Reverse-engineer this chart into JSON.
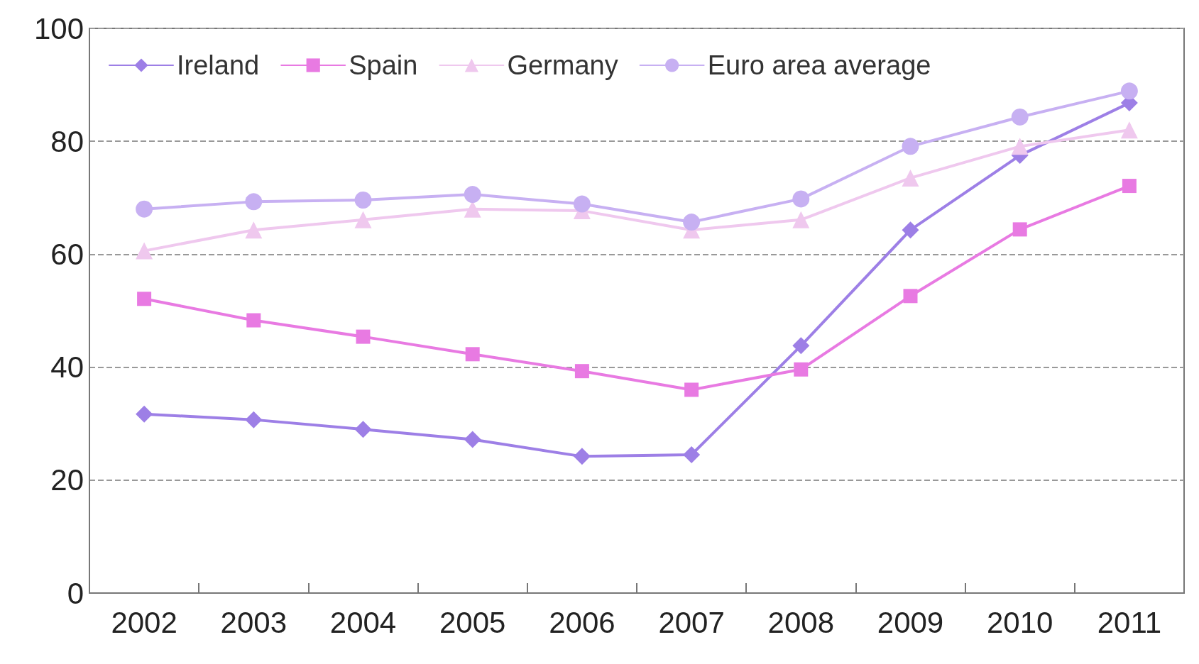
{
  "chart_data": {
    "type": "line",
    "categories": [
      "2002",
      "2003",
      "2004",
      "2005",
      "2006",
      "2007",
      "2008",
      "2009",
      "2010",
      "2011"
    ],
    "series": [
      {
        "name": "Ireland",
        "color": "#9d7fe6",
        "marker": "diamond",
        "values": [
          31.7,
          30.7,
          29.0,
          27.2,
          24.2,
          24.5,
          43.8,
          64.3,
          77.5,
          86.8
        ]
      },
      {
        "name": "Spain",
        "color": "#e87ae2",
        "marker": "square",
        "values": [
          52.1,
          48.3,
          45.4,
          42.3,
          39.3,
          36.0,
          39.6,
          52.6,
          64.4,
          72.1
        ]
      },
      {
        "name": "Germany",
        "color": "#efc8ee",
        "marker": "triangle",
        "values": [
          60.6,
          64.3,
          66.1,
          68.0,
          67.7,
          64.3,
          66.1,
          73.5,
          79.1,
          82.0
        ]
      },
      {
        "name": "Euro area average",
        "color": "#c7b0f2",
        "marker": "circle",
        "values": [
          68.0,
          69.3,
          69.6,
          70.6,
          68.9,
          65.7,
          69.8,
          79.1,
          84.3,
          88.9
        ]
      }
    ],
    "ylim": [
      0,
      100
    ],
    "yticks": [
      0,
      20,
      40,
      60,
      80,
      100
    ],
    "grid": "y",
    "legend": "top left",
    "line_style": "solid"
  }
}
